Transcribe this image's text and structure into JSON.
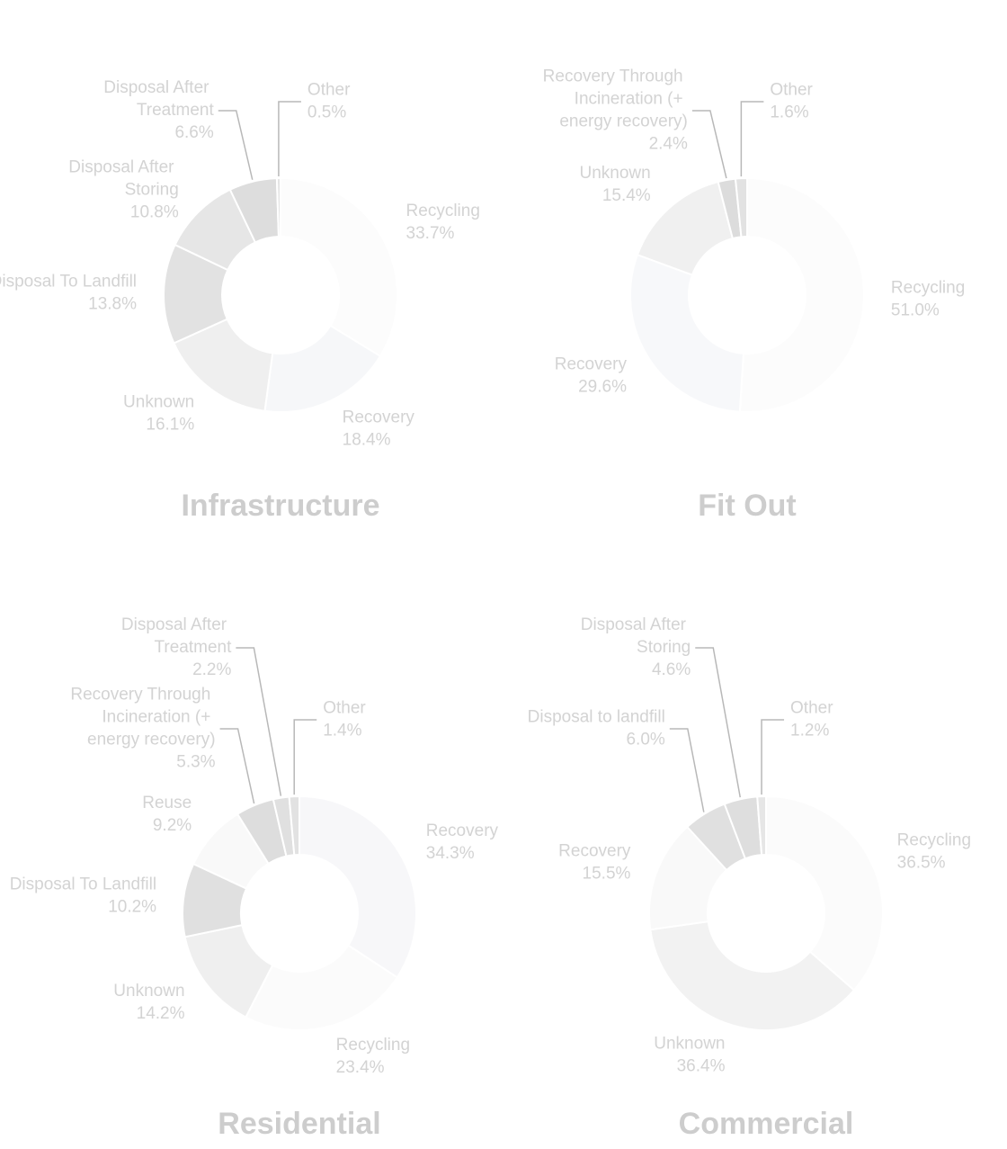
{
  "chart_data": [
    {
      "type": "pie",
      "title": "Infrastructure",
      "categories": [
        "Recycling",
        "Recovery",
        "Unknown",
        "Disposal To Landfill",
        "Disposal After Storing",
        "Disposal After Treatment",
        "Other"
      ],
      "values": [
        33.7,
        18.4,
        16.1,
        13.8,
        10.8,
        6.6,
        0.5
      ],
      "value_labels": [
        "33.7%",
        "18.4%",
        "16.1%",
        "13.8%",
        "10.8%",
        "6.6%",
        "0.5%"
      ],
      "colors": [
        "#fcfcfc",
        "#f6f7f9",
        "#efefef",
        "#e2e2e2",
        "#e6e6e6",
        "#dddddd",
        "#e4e4e4"
      ]
    },
    {
      "type": "pie",
      "title": "Fit Out",
      "categories": [
        "Recycling",
        "Recovery",
        "Unknown",
        "Recovery Through Incineration (+ energy recovery)",
        "Other"
      ],
      "values": [
        51.0,
        29.6,
        15.4,
        2.4,
        1.6
      ],
      "value_labels": [
        "51.0%",
        "29.6%",
        "15.4%",
        "2.4%",
        "1.6%"
      ],
      "colors": [
        "#fcfcfc",
        "#f7f8fa",
        "#f0f0f0",
        "#dcdcdc",
        "#e2e2e2"
      ]
    },
    {
      "type": "pie",
      "title": "Residential",
      "categories": [
        "Recovery",
        "Recycling",
        "Unknown",
        "Disposal To Landfill",
        "Reuse",
        "Recovery Through Incineration (+ energy recovery)",
        "Disposal After Treatment",
        "Other"
      ],
      "values": [
        34.3,
        23.4,
        14.2,
        10.2,
        9.2,
        5.3,
        2.2,
        1.4
      ],
      "value_labels": [
        "34.3%",
        "23.4%",
        "14.2%",
        "10.2%",
        "9.2%",
        "5.3%",
        "2.2%",
        "1.4%"
      ],
      "colors": [
        "#f7f7f9",
        "#fbfbfb",
        "#efefef",
        "#e0e0e0",
        "#f9f9f9",
        "#dddddd",
        "#e0e0e0",
        "#e2e2e2"
      ]
    },
    {
      "type": "pie",
      "title": "Commercial",
      "categories": [
        "Recycling",
        "Unknown",
        "Recovery",
        "Disposal to landfill",
        "Disposal After Storing",
        "Other"
      ],
      "values": [
        36.5,
        36.4,
        15.5,
        6.0,
        4.6,
        1.2
      ],
      "value_labels": [
        "36.5%",
        "36.4%",
        "15.5%",
        "6.0%",
        "4.6%",
        "1.2%"
      ],
      "colors": [
        "#fbfbfb",
        "#f2f2f2",
        "#f9f9f9",
        "#e0e0e0",
        "#dedede",
        "#e6e6e6"
      ]
    }
  ]
}
